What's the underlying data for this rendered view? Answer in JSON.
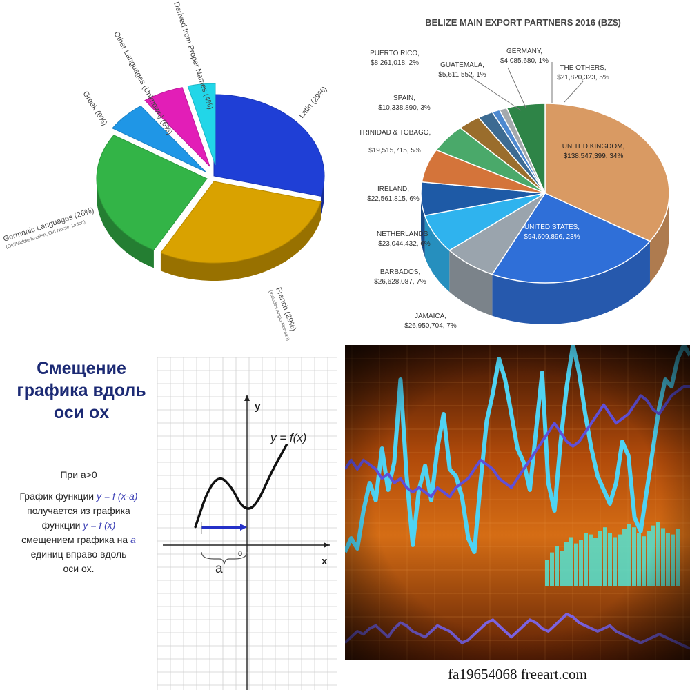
{
  "chart_data": [
    {
      "type": "pie",
      "title": "",
      "slices": [
        {
          "label": "Latin (29%)",
          "value": 29,
          "color": "#1f3fd6"
        },
        {
          "label": "French (29%)",
          "sub": "(includes Anglo-Norman)",
          "value": 29,
          "color": "#d9a200"
        },
        {
          "label": "Germanic Languages (26%)",
          "sub": "(Old/Middle English, Old Norse, Dutch)",
          "value": 26,
          "color": "#33b447"
        },
        {
          "label": "Greek (6%)",
          "value": 6,
          "color": "#1f96e6"
        },
        {
          "label": "Other Languages (Unknown) (6%)",
          "value": 6,
          "color": "#e21eb7"
        },
        {
          "label": "Derived from Proper Names (4%)",
          "value": 4,
          "color": "#22d6e8"
        }
      ]
    },
    {
      "type": "pie",
      "title": "BELIZE MAIN EXPORT PARTNERS 2016 (BZ$)",
      "slices": [
        {
          "label": "UNITED KINGDOM,",
          "value_text": "$138,547,399, 34%",
          "value": 34,
          "color": "#d99a63"
        },
        {
          "label": "UNITED STATES,",
          "value_text": "$94,609,896, 23%",
          "value": 23,
          "color": "#2f6fd8"
        },
        {
          "label": "JAMAICA,",
          "value_text": "$26,950,704, 7%",
          "value": 7,
          "color": "#9aa4ad"
        },
        {
          "label": "BARBADOS,",
          "value_text": "$26,628,087, 7%",
          "value": 7,
          "color": "#2fb3ee"
        },
        {
          "label": "NETHERLANDS ,",
          "value_text": "$23,044,432, 6%",
          "value": 6,
          "color": "#1e5aa6"
        },
        {
          "label": "IRELAND,",
          "value_text": "$22,561,815, 6%",
          "value": 6,
          "color": "#d4743a"
        },
        {
          "label": "TRINIDAD & TOBAGO,",
          "value_text": "$19,515,715, 5%",
          "value": 5,
          "color": "#4aa96a"
        },
        {
          "label": "SPAIN,",
          "value_text": "$10,338,890, 3%",
          "value": 3,
          "color": "#9a6d2c"
        },
        {
          "label": "PUERTO RICO,",
          "value_text": "$8,261,018, 2%",
          "value": 2,
          "color": "#3d6b92"
        },
        {
          "label": "GUATEMALA,",
          "value_text": "$5,611,552, 1%",
          "value": 1,
          "color": "#4d89d0"
        },
        {
          "label": "GERMANY,",
          "value_text": "$4,085,680, 1%",
          "value": 1,
          "color": "#a4a9ad"
        },
        {
          "label": "THE OTHERS,",
          "value_text": "$21,820,323, 5%",
          "value": 5,
          "color": "#2e8447"
        }
      ]
    },
    {
      "type": "line",
      "title": "Смещение графика вдоль оси ox",
      "xlabel": "x",
      "ylabel": "y",
      "curve_label": "y = f(x)",
      "origin_label": "0",
      "shift_label": "a",
      "x": [
        -3.4,
        -2.6,
        -1.8,
        -1.0,
        -0.4,
        0.2,
        0.8,
        1.6,
        2.6
      ],
      "y": [
        1.2,
        3.6,
        4.6,
        3.8,
        2.6,
        2.3,
        3.0,
        4.8,
        6.6
      ]
    },
    {
      "type": "line",
      "title": "",
      "series": [
        {
          "values": [
            40,
            44,
            41,
            52,
            60,
            55,
            70,
            58,
            66,
            90,
            62,
            42,
            58,
            65,
            55,
            70,
            80,
            64,
            62,
            56,
            44,
            40,
            60,
            78,
            86,
            96,
            90,
            80,
            70,
            66,
            58,
            75,
            92,
            60,
            52,
            72,
            88,
            100,
            92,
            80,
            70,
            62,
            58,
            54,
            60,
            72,
            68,
            50,
            46,
            58,
            70,
            82,
            90,
            88,
            96,
            100,
            97
          ]
        },
        {
          "values": [
            60,
            62,
            60,
            62,
            61,
            60,
            58,
            59,
            57,
            58,
            56,
            55,
            56,
            55,
            54,
            56,
            55,
            54,
            56,
            57,
            58,
            60,
            62,
            61,
            60,
            58,
            57,
            56,
            58,
            60,
            62,
            64,
            66,
            68,
            70,
            68,
            66,
            65,
            66,
            68,
            70,
            72,
            74,
            72,
            70,
            71,
            72,
            74,
            76,
            75,
            73,
            72,
            74,
            76,
            77,
            78,
            78
          ]
        },
        {
          "values": [
            20,
            22,
            24,
            23,
            25,
            26,
            24,
            22,
            25,
            27,
            26,
            24,
            23,
            22,
            24,
            26,
            25,
            24,
            22,
            20,
            21,
            23,
            25,
            27,
            28,
            26,
            24,
            22,
            24,
            26,
            28,
            27,
            25,
            24,
            26,
            28,
            30,
            29,
            27,
            26,
            25,
            24,
            25,
            26,
            24,
            23,
            22,
            21,
            20,
            21,
            22,
            23,
            22,
            21,
            20,
            19,
            18
          ]
        }
      ],
      "bars": [
        30,
        38,
        45,
        40,
        50,
        55,
        48,
        52,
        60,
        58,
        54,
        62,
        66,
        60,
        55,
        58,
        64,
        70,
        66,
        60,
        56,
        62,
        68,
        72,
        65,
        60,
        58,
        64
      ]
    }
  ],
  "p3": {
    "condition": "При a>0",
    "desc1": "График функции",
    "formula1": "y = f (x-a)",
    "desc2": "получается из графика",
    "desc3": "функции",
    "formula2": "y = f (x)",
    "desc4": "смещением  графика на",
    "formula3": "a",
    "desc5": "единиц вправо вдоль",
    "desc6": "оси ох."
  },
  "p4": {
    "watermark": "fa19654068 freeart.com"
  }
}
